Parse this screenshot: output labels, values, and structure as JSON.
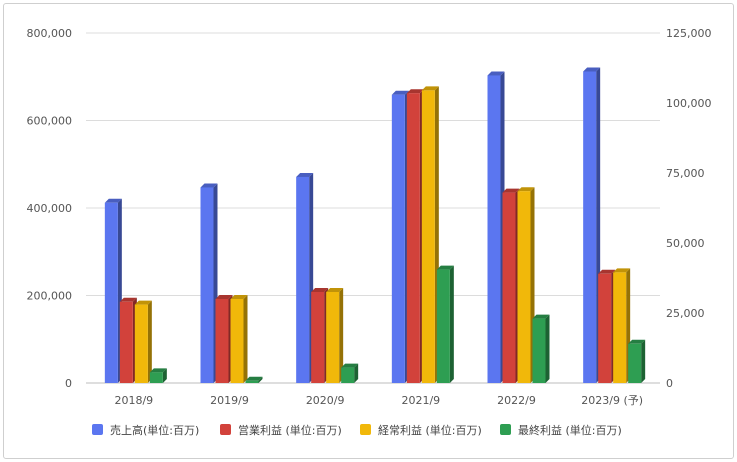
{
  "chart_data": {
    "type": "bar",
    "categories": [
      "2018/9",
      "2019/9",
      "2020/9",
      "2021/9",
      "2022/9",
      "2023/9 (予)"
    ],
    "series": [
      {
        "name": "売上高(単位:百万)",
        "axis": "left",
        "color": "#5b76f0",
        "values": [
          412000,
          447000,
          471000,
          659000,
          703000,
          712000
        ]
      },
      {
        "name": "営業利益 (単位:百万)",
        "axis": "right",
        "color": "#d2423b",
        "values": [
          29000,
          30000,
          32500,
          103500,
          68000,
          39000
        ]
      },
      {
        "name": "経常利益 (単位:百万)",
        "axis": "right",
        "color": "#f1b80a",
        "values": [
          28000,
          30000,
          32500,
          104500,
          68500,
          39500
        ]
      },
      {
        "name": "最終利益 (単位:百万)",
        "axis": "right",
        "color": "#2e9e52",
        "values": [
          3800,
          800,
          5500,
          40500,
          23000,
          14000
        ]
      }
    ],
    "left_axis": {
      "ylim": [
        0,
        800000
      ],
      "ticks": [
        "0",
        "200,000",
        "400,000",
        "600,000",
        "800,000"
      ]
    },
    "right_axis": {
      "ylim": [
        0,
        125000
      ],
      "ticks": [
        "0",
        "25,000",
        "50,000",
        "75,000",
        "100,000",
        "125,000"
      ]
    },
    "grid": true,
    "legend_position": "bottom"
  }
}
